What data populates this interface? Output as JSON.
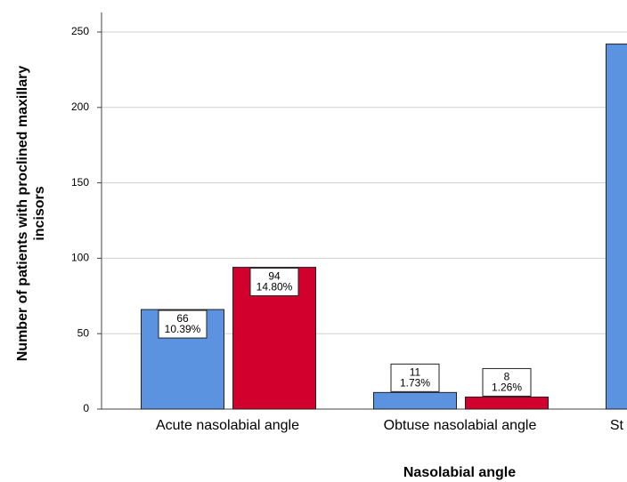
{
  "chart_data": {
    "type": "bar",
    "y_axis_label": [
      "Number of patients with proclined maxillary",
      "incisors"
    ],
    "x_axis_label": "Nasolabial angle",
    "categories": [
      "Acute nasolabial angle",
      "Obtuse nasolabial angle",
      "St"
    ],
    "series": [
      {
        "color": "#5b93e0",
        "values": [
          66,
          11,
          242
        ],
        "percent_labels": [
          "10.39%",
          "1.73%",
          null
        ]
      },
      {
        "color": "#d2002c",
        "values": [
          94,
          8,
          null
        ],
        "percent_labels": [
          "14.80%",
          "1.26%",
          null
        ]
      }
    ],
    "ylim": [
      0,
      250
    ],
    "yticks": [
      0,
      50,
      100,
      150,
      200,
      250
    ],
    "grid": true
  }
}
